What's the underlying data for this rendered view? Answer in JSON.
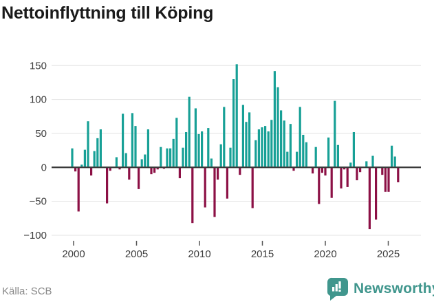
{
  "title": "Nettoinflyttning till Köping",
  "source": "Källa: SCB",
  "branding": {
    "name": "Newsworthy"
  },
  "colors": {
    "background": "#ffffff",
    "title": "#1a1a1a",
    "positive": "#17a096",
    "negative": "#8c1045",
    "grid": "#e3e3e3",
    "zero_line": "#3a3a3a",
    "axis_text": "#3d3d3d",
    "tick_mark": "#555555",
    "source_text": "#898989",
    "brand": "#40968d"
  },
  "chart_data": {
    "type": "bar",
    "title": "Nettoinflyttning till Köping",
    "frequency": "quarterly",
    "start_year": 1999,
    "start_quarter": 4,
    "end_year": 2025,
    "end_quarter": 3,
    "values": [
      28,
      -6,
      -65,
      4,
      26,
      68,
      -12,
      24,
      43,
      56,
      0,
      -53,
      -5,
      0,
      15,
      -3,
      79,
      21,
      -18,
      80,
      61,
      -32,
      12,
      19,
      56,
      -10,
      -8,
      -3,
      30,
      -2,
      28,
      28,
      42,
      73,
      -16,
      29,
      52,
      104,
      -82,
      87,
      49,
      53,
      -59,
      58,
      13,
      -73,
      -18,
      34,
      89,
      -46,
      29,
      130,
      152,
      -11,
      92,
      67,
      81,
      -60,
      40,
      56,
      59,
      61,
      53,
      70,
      142,
      118,
      84,
      69,
      23,
      64,
      -5,
      23,
      89,
      48,
      37,
      0,
      -9,
      30,
      -54,
      -8,
      -12,
      44,
      -45,
      98,
      33,
      -31,
      -3,
      -29,
      7,
      52,
      -19,
      -7,
      0,
      9,
      -91,
      17,
      -77,
      0,
      -11,
      -36,
      -36,
      32,
      16,
      -22
    ],
    "y_ticks": [
      150,
      100,
      50,
      0,
      -50,
      -100
    ],
    "y_tick_labels": [
      "150",
      "100",
      "50",
      "0",
      "−50",
      "−100"
    ],
    "x_ticks": [
      2000,
      2005,
      2010,
      2015,
      2020,
      2025
    ],
    "x_tick_labels": [
      "2000",
      "2005",
      "2010",
      "2015",
      "2020",
      "2025"
    ],
    "ylim": [
      -110,
      160
    ],
    "grid": true,
    "legend": "none"
  }
}
